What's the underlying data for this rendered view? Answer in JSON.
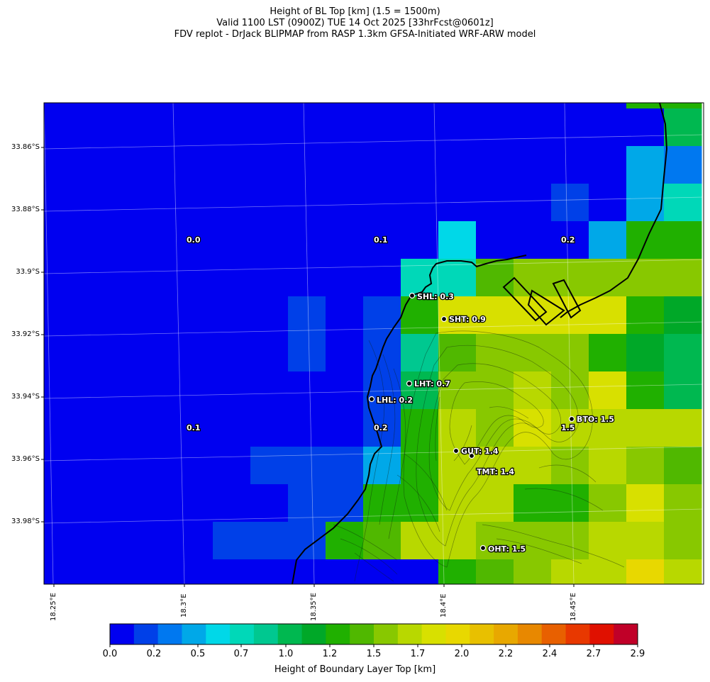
{
  "title": {
    "line1": "Height of BL Top [km] (1.5 = 1500m)",
    "line2": "Valid 1100 LST (0900Z) TUE 14 Oct 2025 [33hrFcst@0601z]",
    "line3": "FDV replot - DrJack BLIPMAP from RASP 1.3km GFSA-Initiated WRF-ARW model"
  },
  "lat_ticks": [
    "33.86°S",
    "33.88°S",
    "33.9°S",
    "33.92°S",
    "33.94°S",
    "33.96°S",
    "33.98°S"
  ],
  "lon_ticks": [
    "18.25°E",
    "18.3°E",
    "18.35°E",
    "18.4°E",
    "18.45°E"
  ],
  "colorbar": {
    "label": "Height of Boundary Layer Top [km]",
    "ticks": [
      "0.0",
      "0.2",
      "0.5",
      "0.7",
      "1.0",
      "1.2",
      "1.5",
      "1.7",
      "2.0",
      "2.2",
      "2.4",
      "2.7",
      "2.9"
    ],
    "colors": [
      "#0000f0",
      "#0040e8",
      "#0078f0",
      "#00a8e8",
      "#00d8e8",
      "#00d8b8",
      "#00c890",
      "#00b850",
      "#00a828",
      "#20b000",
      "#50b800",
      "#88c800",
      "#b8d800",
      "#d8e000",
      "#e8d800",
      "#e8c000",
      "#e8a800",
      "#e88800",
      "#e86000",
      "#e83800",
      "#e01000",
      "#c00028"
    ]
  },
  "grid_values": [
    [
      0,
      0,
      0,
      0,
      0,
      0,
      0,
      0,
      0,
      0,
      0,
      0,
      0,
      0,
      0,
      0,
      9,
      9
    ],
    [
      0,
      0,
      0,
      0,
      0,
      0,
      0,
      0,
      0,
      0,
      0,
      0,
      0,
      0,
      0,
      0,
      0,
      7
    ],
    [
      0,
      0,
      0,
      0,
      0,
      0,
      0,
      0,
      0,
      0,
      0,
      0,
      0,
      0,
      0,
      0,
      3,
      2
    ],
    [
      0,
      0,
      0,
      0,
      0,
      0,
      0,
      0,
      0,
      0,
      0,
      0,
      0,
      0,
      1,
      0,
      3,
      5
    ],
    [
      0,
      0,
      0,
      0,
      0,
      0,
      0,
      0,
      0,
      0,
      0,
      4,
      0,
      0,
      0,
      3,
      9,
      9
    ],
    [
      0,
      0,
      0,
      0,
      0,
      0,
      0,
      0,
      0,
      0,
      5,
      5,
      10,
      11,
      11,
      11,
      11,
      11
    ],
    [
      0,
      0,
      0,
      0,
      0,
      0,
      0,
      1,
      0,
      1,
      9,
      13,
      13,
      13,
      13,
      13,
      9,
      8
    ],
    [
      0,
      0,
      0,
      0,
      0,
      0,
      0,
      1,
      0,
      1,
      6,
      10,
      11,
      11,
      11,
      9,
      8,
      7
    ],
    [
      0,
      0,
      0,
      0,
      0,
      0,
      0,
      0,
      0,
      1,
      7,
      11,
      11,
      12,
      11,
      13,
      9,
      7
    ],
    [
      0,
      0,
      0,
      0,
      0,
      0,
      0,
      0,
      0,
      1,
      9,
      12,
      11,
      13,
      12,
      12,
      12,
      12
    ],
    [
      0,
      0,
      0,
      0,
      0,
      0,
      1,
      1,
      1,
      3,
      9,
      12,
      12,
      12,
      11,
      12,
      11,
      10
    ],
    [
      0,
      0,
      0,
      0,
      0,
      0,
      0,
      1,
      1,
      9,
      9,
      12,
      12,
      9,
      9,
      11,
      13,
      11
    ],
    [
      0,
      0,
      0,
      0,
      0,
      1,
      1,
      1,
      9,
      10,
      12,
      12,
      11,
      11,
      11,
      12,
      12,
      11
    ],
    [
      0,
      0,
      0,
      0,
      0,
      0,
      0,
      0,
      0,
      0,
      0,
      9,
      10,
      11,
      12,
      12,
      14,
      12
    ]
  ],
  "region_values": [
    {
      "text": "0.0"
    },
    {
      "text": "0.1"
    },
    {
      "text": "0.2"
    },
    {
      "text": "0.1"
    },
    {
      "text": "0.2"
    },
    {
      "text": "1.5"
    }
  ],
  "stations": [
    {
      "text": "SHL: 0.3"
    },
    {
      "text": "SHT: 0.9"
    },
    {
      "text": "LHT: 0.7"
    },
    {
      "text": "LHL: 0.2"
    },
    {
      "text": "BTO: 1.5"
    },
    {
      "text": "GUT: 1.4"
    },
    {
      "text": "TMT: 1.4"
    },
    {
      "text": "OHT: 1.5"
    }
  ]
}
